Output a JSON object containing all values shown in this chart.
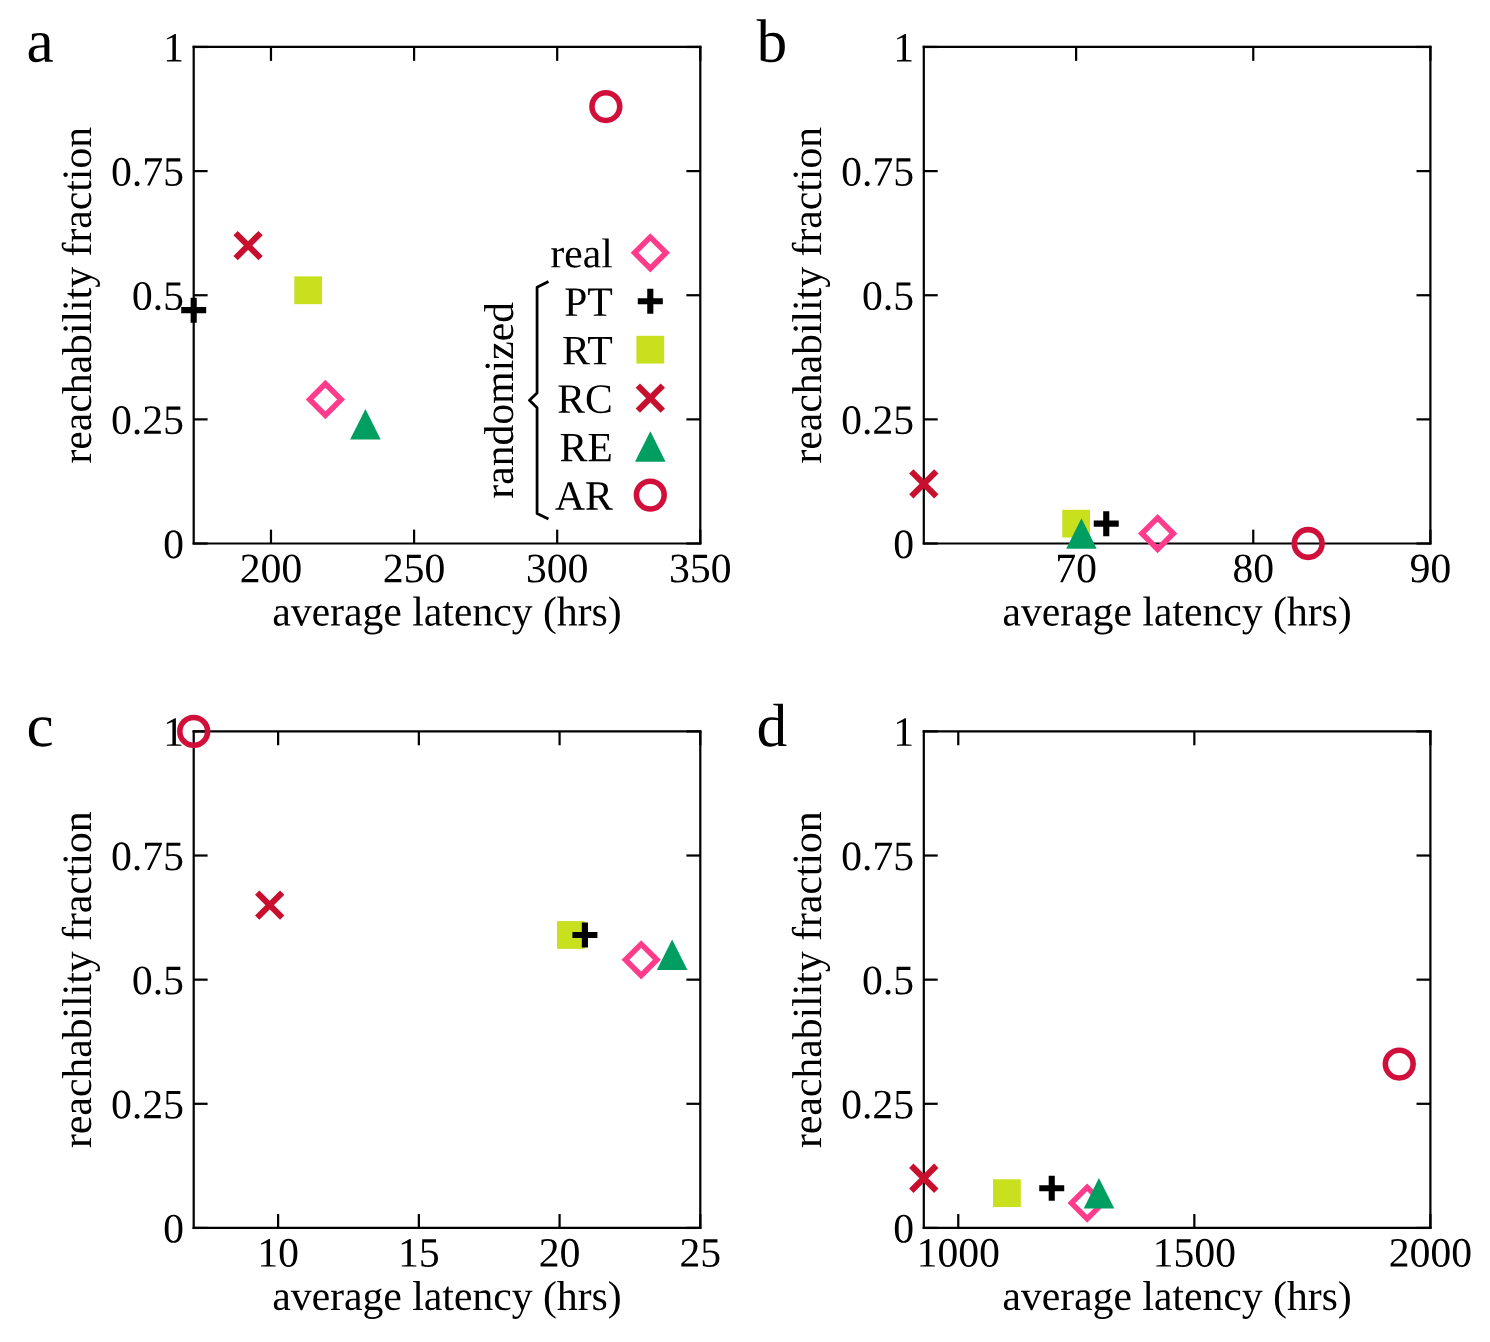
{
  "chart_data": [
    {
      "type": "scatter",
      "title": "a",
      "xlabel": "average latency (hrs)",
      "ylabel": "reachability fraction",
      "xlim": [
        173,
        350
      ],
      "xticks": [
        200,
        250,
        300,
        350
      ],
      "ylim": [
        0,
        1
      ],
      "yticks": [
        0,
        {
          "value": 0.25,
          "label": "0.25"
        },
        {
          "value": 0.5,
          "label": "0.5"
        },
        {
          "value": 0.75,
          "label": "0.75"
        },
        1
      ],
      "grid": false,
      "legend": "right",
      "legend_title": "randomized",
      "series": [
        {
          "name": "real",
          "color": "#ff3c8c",
          "marker": "diamond",
          "x": [
            219
          ],
          "values": [
            0.29
          ]
        },
        {
          "name": "PT",
          "color": "#000000",
          "marker": "plus",
          "x": [
            173
          ],
          "values": [
            0.47
          ]
        },
        {
          "name": "RT",
          "color": "#c8e01e",
          "marker": "square",
          "x": [
            213
          ],
          "values": [
            0.51
          ]
        },
        {
          "name": "RC",
          "color": "#c8102e",
          "marker": "cross",
          "x": [
            192
          ],
          "values": [
            0.6
          ]
        },
        {
          "name": "RE",
          "color": "#009e60",
          "marker": "triangle",
          "x": [
            233
          ],
          "values": [
            0.24
          ]
        },
        {
          "name": "AR",
          "color": "#d0103a",
          "marker": "circle",
          "x": [
            317
          ],
          "values": [
            0.88
          ]
        }
      ]
    },
    {
      "type": "scatter",
      "title": "b",
      "xlabel": "average latency (hrs)",
      "ylabel": "reachability fraction",
      "xlim": [
        61.4,
        90
      ],
      "xticks": [
        70,
        80,
        90
      ],
      "ylim": [
        0,
        1
      ],
      "yticks": [
        0,
        {
          "value": 0.25,
          "label": "0.25"
        },
        {
          "value": 0.5,
          "label": "0.5"
        },
        {
          "value": 0.75,
          "label": "0.75"
        },
        1
      ],
      "grid": false,
      "series": [
        {
          "color": "#ff3c8c",
          "marker": "diamond",
          "x": [
            74.6
          ],
          "values": [
            0.02
          ]
        },
        {
          "color": "#000000",
          "marker": "plus",
          "x": [
            71.7
          ],
          "values": [
            0.04
          ]
        },
        {
          "color": "#c8e01e",
          "marker": "square",
          "x": [
            70.0
          ],
          "values": [
            0.04
          ]
        },
        {
          "color": "#c8102e",
          "marker": "cross",
          "x": [
            61.4
          ],
          "values": [
            0.12
          ]
        },
        {
          "color": "#009e60",
          "marker": "triangle",
          "x": [
            70.3
          ],
          "values": [
            0.02
          ]
        },
        {
          "color": "#d0103a",
          "marker": "circle",
          "x": [
            83.1
          ],
          "values": [
            0.0
          ]
        }
      ]
    },
    {
      "type": "scatter",
      "title": "c",
      "xlabel": "average latency (hrs)",
      "ylabel": "reachability fraction",
      "xlim": [
        7,
        25
      ],
      "xticks": [
        10,
        15,
        20,
        25
      ],
      "ylim": [
        0,
        1
      ],
      "yticks": [
        0,
        {
          "value": 0.25,
          "label": "0.25"
        },
        {
          "value": 0.5,
          "label": "0.5"
        },
        {
          "value": 0.75,
          "label": "0.75"
        },
        1
      ],
      "grid": false,
      "series": [
        {
          "color": "#ff3c8c",
          "marker": "diamond",
          "x": [
            22.9
          ],
          "values": [
            0.54
          ]
        },
        {
          "color": "#000000",
          "marker": "plus",
          "x": [
            20.9
          ],
          "values": [
            0.59
          ]
        },
        {
          "color": "#c8e01e",
          "marker": "square",
          "x": [
            20.4
          ],
          "values": [
            0.59
          ]
        },
        {
          "color": "#c8102e",
          "marker": "cross",
          "x": [
            9.7
          ],
          "values": [
            0.65
          ]
        },
        {
          "color": "#009e60",
          "marker": "triangle",
          "x": [
            24.0
          ],
          "values": [
            0.55
          ]
        },
        {
          "color": "#d0103a",
          "marker": "circle",
          "x": [
            7
          ],
          "values": [
            1.0
          ]
        }
      ]
    },
    {
      "type": "scatter",
      "title": "d",
      "xlabel": "average latency (hrs)",
      "ylabel": "reachability fraction",
      "xlim": [
        927,
        2000
      ],
      "xticks": [
        1000,
        1500,
        2000
      ],
      "ylim": [
        0,
        1
      ],
      "yticks": [
        0,
        {
          "value": 0.25,
          "label": "0.25"
        },
        {
          "value": 0.5,
          "label": "0.5"
        },
        {
          "value": 0.75,
          "label": "0.75"
        },
        1
      ],
      "grid": false,
      "series": [
        {
          "color": "#ff3c8c",
          "marker": "diamond",
          "x": [
            1273
          ],
          "values": [
            0.05
          ]
        },
        {
          "color": "#000000",
          "marker": "plus",
          "x": [
            1198
          ],
          "values": [
            0.08
          ]
        },
        {
          "color": "#c8e01e",
          "marker": "square",
          "x": [
            1103
          ],
          "values": [
            0.07
          ]
        },
        {
          "color": "#c8102e",
          "marker": "cross",
          "x": [
            927
          ],
          "values": [
            0.1
          ]
        },
        {
          "color": "#009e60",
          "marker": "triangle",
          "x": [
            1298
          ],
          "values": [
            0.07
          ]
        },
        {
          "color": "#d0103a",
          "marker": "circle",
          "x": [
            1934
          ],
          "values": [
            0.33
          ]
        }
      ]
    }
  ]
}
